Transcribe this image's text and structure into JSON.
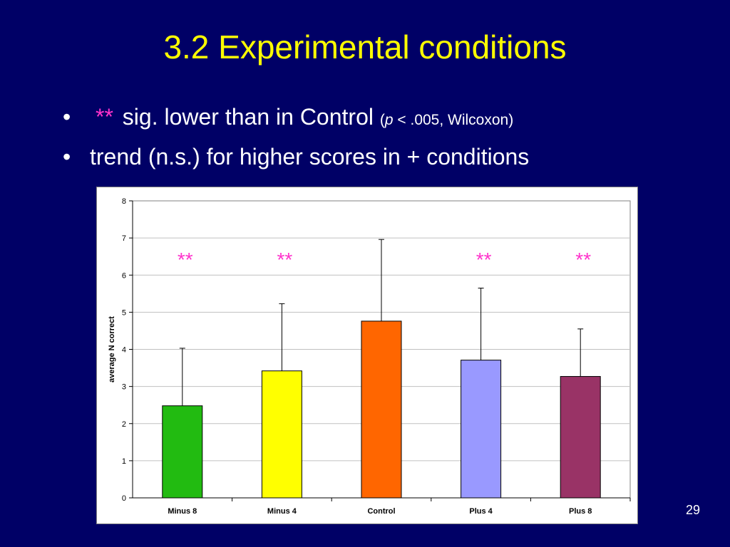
{
  "slide": {
    "title": "3.2 Experimental conditions",
    "bullets": [
      {
        "marker": "•",
        "stars": "**",
        "text": "sig. lower than in Control",
        "note_open": "(",
        "note_italic": "p",
        "note_rest": " < .005, Wilcoxon)"
      },
      {
        "marker": "•",
        "text": "trend (n.s.) for higher scores in + conditions"
      }
    ],
    "page_number": "29"
  },
  "chart_data": {
    "type": "bar",
    "categories": [
      "Minus 8",
      "Minus 4",
      "Control",
      "Plus 4",
      "Plus 8"
    ],
    "values": [
      2.48,
      3.42,
      4.76,
      3.71,
      3.27
    ],
    "error_upper": [
      4.03,
      5.23,
      6.96,
      5.65,
      4.55
    ],
    "bar_colors": [
      "#22bb11",
      "#ffff00",
      "#ff6600",
      "#9999ff",
      "#993366"
    ],
    "significance": [
      "**",
      "**",
      "",
      "**",
      "**"
    ],
    "significance_color": "#ff33cc",
    "ylabel": "average N correct",
    "ylim": [
      0,
      8
    ],
    "yticks": [
      0,
      1,
      2,
      3,
      4,
      5,
      6,
      7,
      8
    ],
    "grid": true,
    "plot_background": "#ffffff",
    "grid_color": "#c0c0c0"
  }
}
